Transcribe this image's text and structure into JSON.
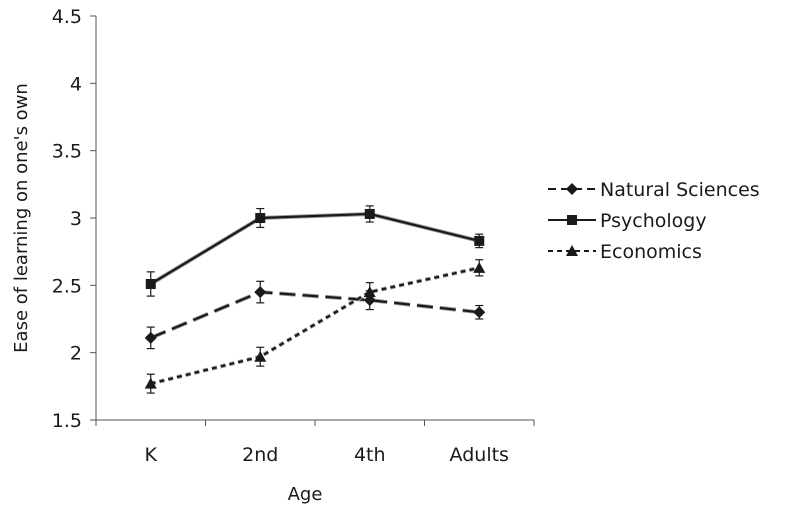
{
  "chart_data": {
    "type": "line",
    "title": "",
    "xlabel": "Age",
    "ylabel": "Ease of learning on one's own",
    "categories": [
      "K",
      "2nd",
      "4th",
      "Adults"
    ],
    "ylim": [
      1.5,
      4.5
    ],
    "yticks": [
      1.5,
      2,
      2.5,
      3,
      3.5,
      4,
      4.5
    ],
    "ytick_labels": [
      "1.5",
      "2",
      "2.5",
      "3",
      "3.5",
      "4",
      "4.5"
    ],
    "grid": false,
    "legend_position": "right",
    "series": [
      {
        "name": "Natural Sciences",
        "values": [
          2.11,
          2.45,
          2.39,
          2.3
        ],
        "errors": [
          0.08,
          0.08,
          0.07,
          0.05
        ],
        "marker": "diamond",
        "line_style": "long-dash",
        "color": "#1a1a1a"
      },
      {
        "name": "Psychology",
        "values": [
          2.51,
          3.0,
          3.03,
          2.83
        ],
        "errors": [
          0.09,
          0.07,
          0.06,
          0.05
        ],
        "marker": "square",
        "line_style": "solid",
        "color": "#1a1a1a"
      },
      {
        "name": "Economics",
        "values": [
          1.77,
          1.97,
          2.45,
          2.63
        ],
        "errors": [
          0.07,
          0.07,
          0.07,
          0.06
        ],
        "marker": "triangle",
        "line_style": "dotted",
        "color": "#1a1a1a"
      }
    ]
  }
}
